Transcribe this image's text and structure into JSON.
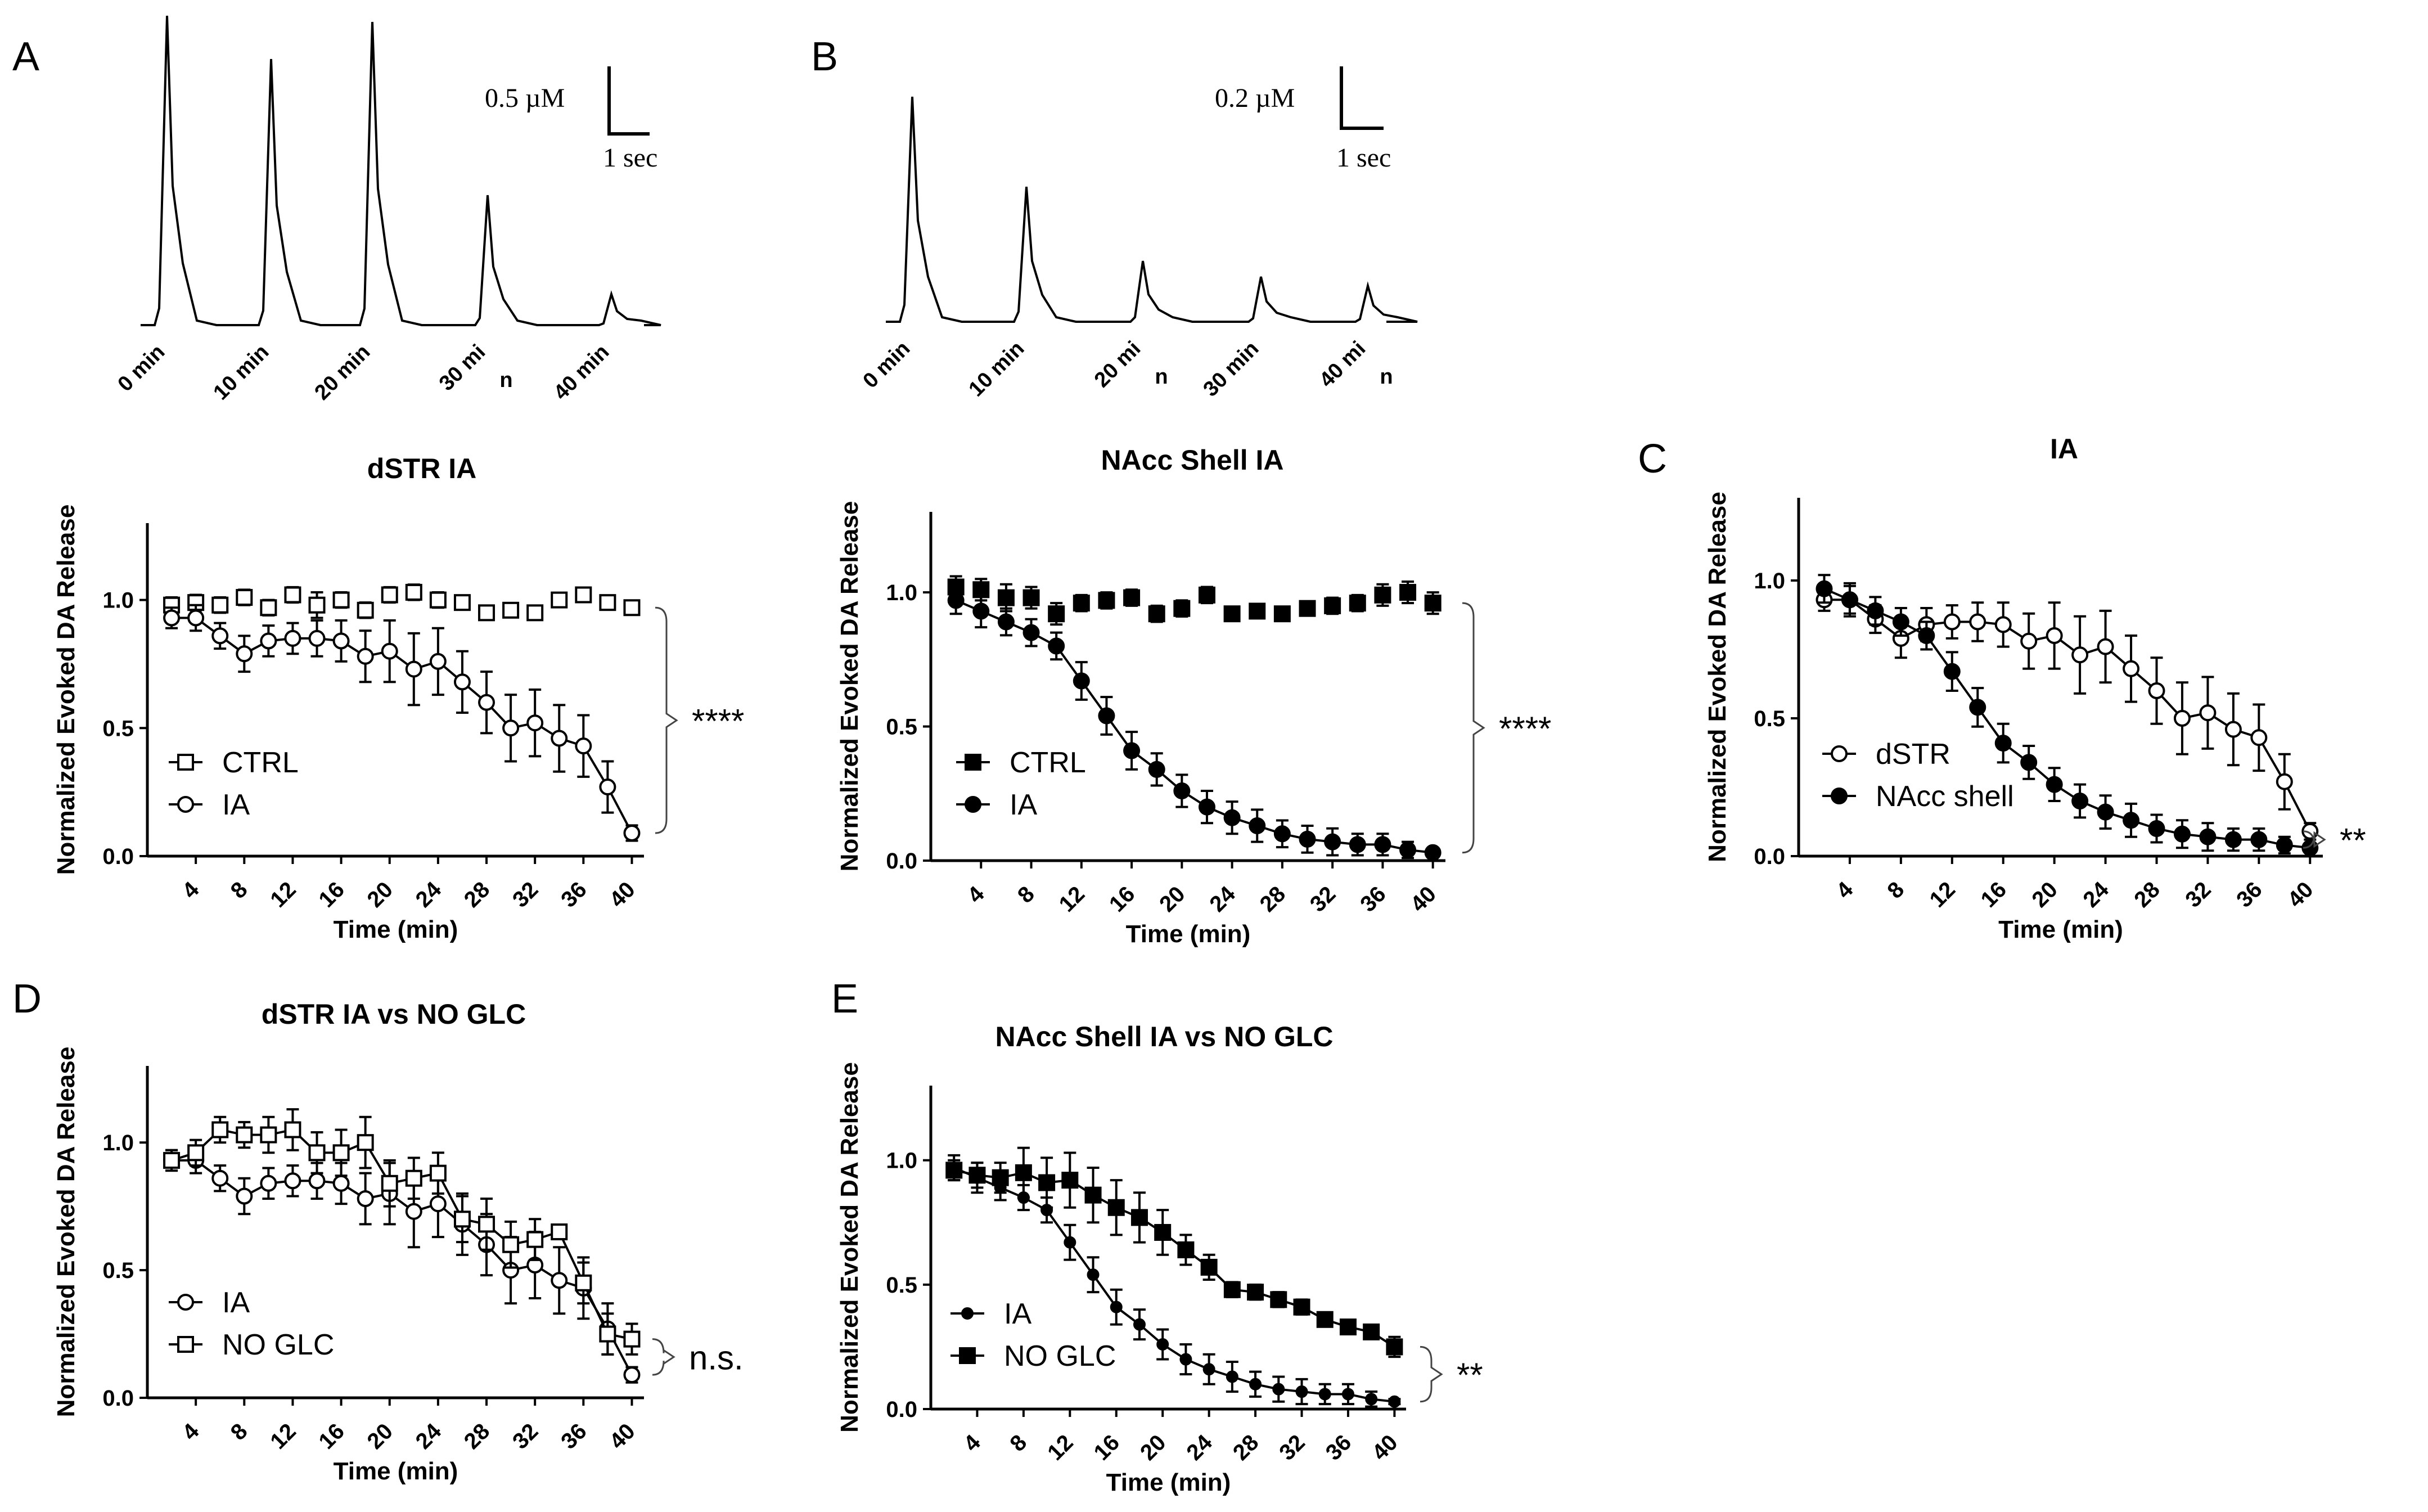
{
  "figure": {
    "panel_letters": {
      "A": "A",
      "B": "B",
      "C": "C",
      "D": "D",
      "E": "E"
    },
    "colors": {
      "ink": "#000000",
      "background": "#ffffff"
    }
  },
  "traces": [
    {
      "panel": "A",
      "scale_concentration": "0.5 µM",
      "scale_time": "1 sec",
      "time_labels": [
        [
          "0 min"
        ],
        [
          "10 min"
        ],
        [
          "20 min"
        ],
        [
          "30 mi",
          "n"
        ],
        [
          "40 min"
        ]
      ],
      "peak_heights": [
        1.0,
        0.86,
        0.98,
        0.42,
        0.1
      ]
    },
    {
      "panel": "B",
      "scale_concentration": "0.2 µM",
      "scale_time": "1 sec",
      "time_labels": [
        [
          "0 min"
        ],
        [
          "10 min"
        ],
        [
          "20 mi",
          "n"
        ],
        [
          "30 min"
        ],
        [
          "40 mi",
          "n"
        ]
      ],
      "peak_heights": [
        1.0,
        0.6,
        0.27,
        0.2,
        0.16
      ]
    }
  ],
  "chart_data": [
    {
      "panel": "A",
      "type": "line",
      "title": "dSTR IA",
      "xlabel": "Time (min)",
      "ylabel": "Normalized Evoked DA Release",
      "xlim": [
        0,
        41
      ],
      "ylim": [
        0,
        1.3
      ],
      "xticks": [
        4,
        8,
        12,
        16,
        20,
        24,
        28,
        32,
        36,
        40
      ],
      "yticks": [
        0.0,
        0.5,
        1.0
      ],
      "ytick_labels": [
        "0.0",
        "0.5",
        "1.0"
      ],
      "x": [
        2,
        4,
        6,
        8,
        10,
        12,
        14,
        16,
        18,
        20,
        22,
        24,
        26,
        28,
        30,
        32,
        34,
        36,
        38,
        40
      ],
      "series": [
        {
          "name": "CTRL",
          "marker": "square-open",
          "line": false,
          "values": [
            0.98,
            0.99,
            0.98,
            1.01,
            0.97,
            1.02,
            0.98,
            1.0,
            0.96,
            1.02,
            1.03,
            1.0,
            0.99,
            0.95,
            0.96,
            0.95,
            1.0,
            1.02,
            0.99,
            0.97
          ],
          "errors": [
            0.03,
            0.03,
            0.03,
            0.03,
            0.03,
            0.03,
            0.05,
            0.03,
            0.03,
            0.03,
            0.03,
            0.03,
            0.02,
            0.02,
            0.02,
            0.02,
            0.02,
            0.02,
            0.02,
            0.02
          ]
        },
        {
          "name": "IA",
          "marker": "circle-open",
          "line": true,
          "values": [
            0.93,
            0.93,
            0.86,
            0.79,
            0.84,
            0.85,
            0.85,
            0.84,
            0.78,
            0.8,
            0.73,
            0.76,
            0.68,
            0.6,
            0.5,
            0.52,
            0.46,
            0.43,
            0.27,
            0.09
          ],
          "errors": [
            0.04,
            0.05,
            0.05,
            0.07,
            0.06,
            0.06,
            0.07,
            0.08,
            0.1,
            0.12,
            0.14,
            0.13,
            0.12,
            0.12,
            0.13,
            0.13,
            0.13,
            0.12,
            0.1,
            0.03
          ]
        }
      ],
      "legend": [
        "CTRL",
        "IA"
      ],
      "significance": "****"
    },
    {
      "panel": "B",
      "type": "line",
      "title": "NAcc Shell IA",
      "xlabel": "Time (min)",
      "ylabel": "Normalized Evoked DA Release",
      "xlim": [
        0,
        41
      ],
      "ylim": [
        0,
        1.3
      ],
      "xticks": [
        4,
        8,
        12,
        16,
        20,
        24,
        28,
        32,
        36,
        40
      ],
      "yticks": [
        0.0,
        0.5,
        1.0
      ],
      "ytick_labels": [
        "0.0",
        "0.5",
        "1.0"
      ],
      "x": [
        2,
        4,
        6,
        8,
        10,
        12,
        14,
        16,
        18,
        20,
        22,
        24,
        26,
        28,
        30,
        32,
        34,
        36,
        38,
        40
      ],
      "series": [
        {
          "name": "CTRL",
          "marker": "square-filled",
          "line": false,
          "values": [
            1.02,
            1.01,
            0.98,
            0.98,
            0.92,
            0.96,
            0.97,
            0.98,
            0.92,
            0.94,
            0.99,
            0.92,
            0.93,
            0.92,
            0.94,
            0.95,
            0.96,
            0.99,
            1.0,
            0.96
          ],
          "errors": [
            0.04,
            0.04,
            0.05,
            0.04,
            0.04,
            0.03,
            0.03,
            0.03,
            0.03,
            0.03,
            0.03,
            0.02,
            0.02,
            0.02,
            0.02,
            0.03,
            0.03,
            0.04,
            0.04,
            0.04
          ]
        },
        {
          "name": "IA",
          "marker": "circle-filled",
          "line": true,
          "values": [
            0.97,
            0.93,
            0.89,
            0.85,
            0.8,
            0.67,
            0.54,
            0.41,
            0.34,
            0.26,
            0.2,
            0.16,
            0.13,
            0.1,
            0.08,
            0.07,
            0.06,
            0.06,
            0.04,
            0.03
          ],
          "errors": [
            0.05,
            0.06,
            0.05,
            0.05,
            0.05,
            0.07,
            0.07,
            0.07,
            0.06,
            0.06,
            0.06,
            0.06,
            0.06,
            0.05,
            0.05,
            0.05,
            0.04,
            0.04,
            0.03,
            0.01
          ]
        }
      ],
      "legend": [
        "CTRL",
        "IA"
      ],
      "significance": "****"
    },
    {
      "panel": "C",
      "type": "line",
      "title": "IA",
      "xlabel": "Time (min)",
      "ylabel": "Normalized Evoked DA Release",
      "xlim": [
        0,
        41
      ],
      "ylim": [
        0,
        1.3
      ],
      "xticks": [
        4,
        8,
        12,
        16,
        20,
        24,
        28,
        32,
        36,
        40
      ],
      "yticks": [
        0.0,
        0.5,
        1.0
      ],
      "ytick_labels": [
        "0.0",
        "0.5",
        "1.0"
      ],
      "x": [
        2,
        4,
        6,
        8,
        10,
        12,
        14,
        16,
        18,
        20,
        22,
        24,
        26,
        28,
        30,
        32,
        34,
        36,
        38,
        40
      ],
      "series": [
        {
          "name": "dSTR",
          "marker": "circle-open",
          "line": true,
          "values": [
            0.93,
            0.93,
            0.86,
            0.79,
            0.84,
            0.85,
            0.85,
            0.84,
            0.78,
            0.8,
            0.73,
            0.76,
            0.68,
            0.6,
            0.5,
            0.52,
            0.46,
            0.43,
            0.27,
            0.09
          ],
          "errors": [
            0.04,
            0.05,
            0.05,
            0.07,
            0.06,
            0.06,
            0.07,
            0.08,
            0.1,
            0.12,
            0.14,
            0.13,
            0.12,
            0.12,
            0.13,
            0.13,
            0.13,
            0.12,
            0.1,
            0.03
          ]
        },
        {
          "name": "NAcc shell",
          "marker": "circle-filled",
          "line": true,
          "values": [
            0.97,
            0.93,
            0.89,
            0.85,
            0.8,
            0.67,
            0.54,
            0.41,
            0.34,
            0.26,
            0.2,
            0.16,
            0.13,
            0.1,
            0.08,
            0.07,
            0.06,
            0.06,
            0.04,
            0.03
          ],
          "errors": [
            0.05,
            0.06,
            0.05,
            0.05,
            0.05,
            0.07,
            0.07,
            0.07,
            0.06,
            0.06,
            0.06,
            0.06,
            0.06,
            0.05,
            0.05,
            0.05,
            0.04,
            0.04,
            0.03,
            0.01
          ]
        }
      ],
      "legend": [
        "dSTR",
        "NAcc shell"
      ],
      "significance": "**"
    },
    {
      "panel": "D",
      "type": "line",
      "title": "dSTR IA vs NO GLC",
      "xlabel": "Time (min)",
      "ylabel": "Normalized Evoked DA Release",
      "xlim": [
        0,
        41
      ],
      "ylim": [
        0,
        1.3
      ],
      "xticks": [
        4,
        8,
        12,
        16,
        20,
        24,
        28,
        32,
        36,
        40
      ],
      "yticks": [
        0.0,
        0.5,
        1.0
      ],
      "ytick_labels": [
        "0.0",
        "0.5",
        "1.0"
      ],
      "x": [
        2,
        4,
        6,
        8,
        10,
        12,
        14,
        16,
        18,
        20,
        22,
        24,
        26,
        28,
        30,
        32,
        34,
        36,
        38,
        40
      ],
      "series": [
        {
          "name": "IA",
          "marker": "circle-open",
          "line": true,
          "values": [
            0.93,
            0.93,
            0.86,
            0.79,
            0.84,
            0.85,
            0.85,
            0.84,
            0.78,
            0.8,
            0.73,
            0.76,
            0.68,
            0.6,
            0.5,
            0.52,
            0.46,
            0.43,
            0.27,
            0.09
          ],
          "errors": [
            0.04,
            0.05,
            0.05,
            0.07,
            0.06,
            0.06,
            0.07,
            0.08,
            0.1,
            0.12,
            0.14,
            0.13,
            0.12,
            0.12,
            0.13,
            0.13,
            0.13,
            0.12,
            0.1,
            0.03
          ]
        },
        {
          "name": "NO GLC",
          "marker": "square-open",
          "line": true,
          "values": [
            0.93,
            0.96,
            1.05,
            1.03,
            1.03,
            1.05,
            0.96,
            0.96,
            1.0,
            0.84,
            0.86,
            0.88,
            0.7,
            0.68,
            0.6,
            0.62,
            0.65,
            0.45,
            0.25,
            0.23
          ],
          "errors": [
            0.04,
            0.05,
            0.05,
            0.05,
            0.07,
            0.08,
            0.08,
            0.09,
            0.1,
            0.09,
            0.08,
            0.08,
            0.09,
            0.1,
            0.09,
            0.08,
            0.02,
            0.08,
            0.08,
            0.06
          ]
        }
      ],
      "legend": [
        "IA",
        "NO GLC"
      ],
      "significance": "n.s."
    },
    {
      "panel": "E",
      "type": "line",
      "title": "NAcc Shell IA vs NO GLC",
      "xlabel": "Time (min)",
      "ylabel": "Normalized Evoked DA Release",
      "xlim": [
        0,
        41
      ],
      "ylim": [
        0,
        1.3
      ],
      "xticks": [
        4,
        8,
        12,
        16,
        20,
        24,
        28,
        32,
        36,
        40
      ],
      "yticks": [
        0.0,
        0.5,
        1.0
      ],
      "ytick_labels": [
        "0.0",
        "0.5",
        "1.0"
      ],
      "x": [
        2,
        4,
        6,
        8,
        10,
        12,
        14,
        16,
        18,
        20,
        22,
        24,
        26,
        28,
        30,
        32,
        34,
        36,
        38,
        40
      ],
      "series": [
        {
          "name": "IA",
          "marker": "circle-filled",
          "line": true,
          "small": true,
          "values": [
            0.97,
            0.93,
            0.89,
            0.85,
            0.8,
            0.67,
            0.54,
            0.41,
            0.34,
            0.26,
            0.2,
            0.16,
            0.13,
            0.1,
            0.08,
            0.07,
            0.06,
            0.06,
            0.04,
            0.03
          ],
          "errors": [
            0.05,
            0.06,
            0.05,
            0.05,
            0.05,
            0.07,
            0.07,
            0.07,
            0.06,
            0.06,
            0.06,
            0.06,
            0.06,
            0.05,
            0.05,
            0.05,
            0.04,
            0.04,
            0.03,
            0.01
          ]
        },
        {
          "name": "NO GLC",
          "marker": "square-filled",
          "line": true,
          "values": [
            0.96,
            0.94,
            0.93,
            0.95,
            0.91,
            0.92,
            0.86,
            0.81,
            0.77,
            0.71,
            0.64,
            0.57,
            0.48,
            0.47,
            0.44,
            0.41,
            0.36,
            0.33,
            0.31,
            0.25
          ],
          "errors": [
            0.04,
            0.05,
            0.06,
            0.1,
            0.1,
            0.11,
            0.11,
            0.11,
            0.1,
            0.09,
            0.06,
            0.05,
            0.03,
            0.03,
            0.03,
            0.03,
            0.02,
            0.02,
            0.02,
            0.04
          ]
        }
      ],
      "legend": [
        "IA",
        "NO GLC"
      ],
      "significance": "**"
    }
  ]
}
